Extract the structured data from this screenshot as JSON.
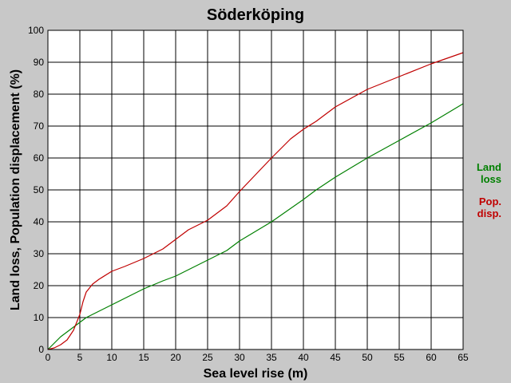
{
  "chart_data": {
    "type": "line",
    "title": "Söderköping",
    "xlabel": "Sea level rise (m)",
    "ylabel": "Land loss, Population displacement (%)",
    "xlim": [
      0,
      65
    ],
    "ylim": [
      0,
      100
    ],
    "xticks": [
      0,
      5,
      10,
      15,
      20,
      25,
      30,
      35,
      40,
      45,
      50,
      55,
      60,
      65
    ],
    "yticks": [
      0,
      10,
      20,
      30,
      40,
      50,
      60,
      70,
      80,
      90,
      100
    ],
    "grid": true,
    "legend_position": "right",
    "series": [
      {
        "legend": [
          "Land",
          "loss"
        ],
        "color": "#008000",
        "x": [
          0,
          1,
          2,
          3,
          4,
          5,
          6,
          7,
          8,
          10,
          12,
          15,
          18,
          20,
          25,
          28,
          30,
          35,
          40,
          42,
          45,
          50,
          55,
          60,
          65
        ],
        "y": [
          0,
          2,
          4,
          5.5,
          7,
          8.5,
          10,
          11,
          12,
          14,
          16,
          19,
          21.5,
          23,
          28,
          31,
          34,
          40,
          47,
          50,
          54,
          60,
          65.5,
          71,
          77
        ]
      },
      {
        "legend": [
          "Pop.",
          "disp."
        ],
        "color": "#c00000",
        "x": [
          0,
          1,
          2,
          3,
          4,
          5,
          5.5,
          6,
          7,
          8,
          10,
          12,
          15,
          18,
          20,
          22,
          25,
          28,
          30,
          35,
          38,
          40,
          42,
          45,
          50,
          55,
          60,
          65
        ],
        "y": [
          0,
          0.5,
          1.5,
          3,
          6,
          11,
          15,
          18,
          20.5,
          22,
          24.5,
          26,
          28.5,
          31.5,
          34.5,
          37.5,
          40.5,
          45,
          49.5,
          60,
          66,
          69,
          71.5,
          76,
          81.5,
          85.5,
          89.5,
          93
        ]
      }
    ]
  }
}
